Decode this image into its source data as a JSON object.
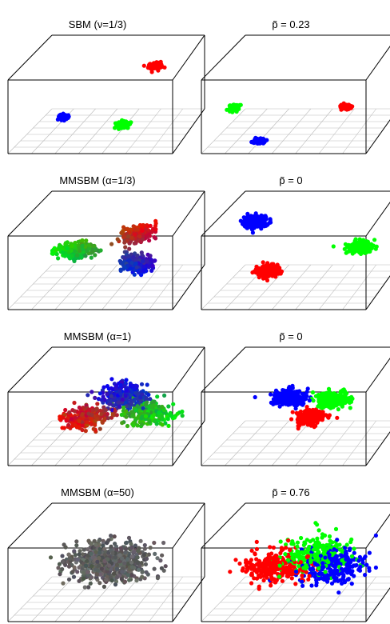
{
  "chart_data": [
    {
      "type": "scatter",
      "dimensions": 3,
      "title": "SBM (ν=1/3)",
      "title_prefix": "SBM (",
      "title_symbol": "ν",
      "title_suffix": "=1/3)",
      "grid_floor": true,
      "series": [
        {
          "name": "",
          "color": "#0000ff",
          "points": 120,
          "spread": 0.015,
          "center": [
            0.22,
            0.52,
            0.18
          ]
        },
        {
          "name": "",
          "color": "#ff0000",
          "points": 150,
          "spread": 0.018,
          "center": [
            0.78,
            0.5,
            0.88
          ]
        },
        {
          "name": "",
          "color": "#00ff00",
          "points": 130,
          "spread": 0.018,
          "center": [
            0.62,
            0.35,
            0.18
          ]
        }
      ]
    },
    {
      "type": "scatter",
      "dimensions": 3,
      "title": "p̃ = 0.23",
      "title_symbol": "p̃",
      "title_value": "0.23",
      "grid_floor": true,
      "series": [
        {
          "name": "",
          "color": "#00ff00",
          "points": 120,
          "spread": 0.016,
          "center": [
            0.1,
            0.45,
            0.35
          ]
        },
        {
          "name": "",
          "color": "#ff0000",
          "points": 100,
          "spread": 0.014,
          "center": [
            0.75,
            0.55,
            0.3
          ]
        },
        {
          "name": "",
          "color": "#0000ff",
          "points": 120,
          "spread": 0.015,
          "center": [
            0.3,
            0.2,
            0.05
          ]
        }
      ]
    },
    {
      "type": "scatter",
      "dimensions": 3,
      "title": "MMSBM (α=1/3)",
      "title_prefix": "MMSBM (",
      "title_symbol": "α",
      "title_suffix": "=1/3)",
      "grid_floor": true,
      "mixed_membership": true,
      "series": [
        {
          "name": "",
          "color": "#ff0000",
          "points": 200,
          "spread": 0.05,
          "center": [
            0.75,
            0.5,
            0.85
          ]
        },
        {
          "name": "",
          "color": "#00ff00",
          "points": 200,
          "spread": 0.05,
          "center": [
            0.15,
            0.5,
            0.5
          ]
        },
        {
          "name": "",
          "color": "#0000ff",
          "points": 200,
          "spread": 0.05,
          "center": [
            0.75,
            0.5,
            0.2
          ]
        }
      ]
    },
    {
      "type": "scatter",
      "dimensions": 3,
      "title": "p̃ = 0",
      "title_symbol": "p̃",
      "title_value": "0",
      "grid_floor": true,
      "series": [
        {
          "name": "",
          "color": "#0000ff",
          "points": 220,
          "spread": 0.035,
          "center": [
            0.2,
            0.55,
            0.85
          ]
        },
        {
          "name": "",
          "color": "#ff0000",
          "points": 220,
          "spread": 0.035,
          "center": [
            0.3,
            0.45,
            0.25
          ]
        },
        {
          "name": "",
          "color": "#00ff00",
          "points": 220,
          "spread": 0.035,
          "center": [
            0.85,
            0.5,
            0.55
          ]
        }
      ]
    },
    {
      "type": "scatter",
      "dimensions": 3,
      "title": "MMSBM (α=1)",
      "title_prefix": "MMSBM (",
      "title_symbol": "α",
      "title_suffix": "=1)",
      "grid_floor": true,
      "mixed_membership": true,
      "series": [
        {
          "name": "",
          "color": "#0000ff",
          "points": 300,
          "spread": 0.1,
          "center": [
            0.6,
            0.5,
            0.75
          ]
        },
        {
          "name": "",
          "color": "#ff0000",
          "points": 250,
          "spread": 0.1,
          "center": [
            0.25,
            0.5,
            0.3
          ]
        },
        {
          "name": "",
          "color": "#00ff00",
          "points": 250,
          "spread": 0.1,
          "center": [
            0.85,
            0.5,
            0.35
          ]
        }
      ]
    },
    {
      "type": "scatter",
      "dimensions": 3,
      "title": "p̃ = 0",
      "title_symbol": "p̃",
      "title_value": "0",
      "grid_floor": true,
      "series": [
        {
          "name": "",
          "color": "#0000ff",
          "points": 300,
          "spread": 0.045,
          "center": [
            0.42,
            0.5,
            0.62
          ]
        },
        {
          "name": "",
          "color": "#00ff00",
          "points": 300,
          "spread": 0.045,
          "center": [
            0.68,
            0.5,
            0.6
          ]
        },
        {
          "name": "",
          "color": "#ff0000",
          "points": 250,
          "spread": 0.04,
          "center": [
            0.55,
            0.5,
            0.35
          ]
        }
      ]
    },
    {
      "type": "scatter",
      "dimensions": 3,
      "title": "MMSBM (α=50)",
      "title_prefix": "MMSBM (",
      "title_symbol": "α",
      "title_suffix": "=50)",
      "grid_floor": true,
      "mixed_membership": true,
      "series": [
        {
          "name": "",
          "color": "#555555",
          "points": 700,
          "spread": 0.1,
          "center": [
            0.5,
            0.5,
            0.5
          ]
        }
      ]
    },
    {
      "type": "scatter",
      "dimensions": 3,
      "title": "p̃ = 0.76",
      "title_symbol": "p̃",
      "title_value": "0.76",
      "grid_floor": true,
      "series": [
        {
          "name": "",
          "color": "#00ff00",
          "points": 250,
          "spread": 0.1,
          "center": [
            0.58,
            0.5,
            0.6
          ]
        },
        {
          "name": "",
          "color": "#0000ff",
          "points": 250,
          "spread": 0.1,
          "center": [
            0.68,
            0.5,
            0.45
          ]
        },
        {
          "name": "",
          "color": "#ff0000",
          "points": 250,
          "spread": 0.1,
          "center": [
            0.35,
            0.5,
            0.45
          ]
        }
      ]
    }
  ]
}
